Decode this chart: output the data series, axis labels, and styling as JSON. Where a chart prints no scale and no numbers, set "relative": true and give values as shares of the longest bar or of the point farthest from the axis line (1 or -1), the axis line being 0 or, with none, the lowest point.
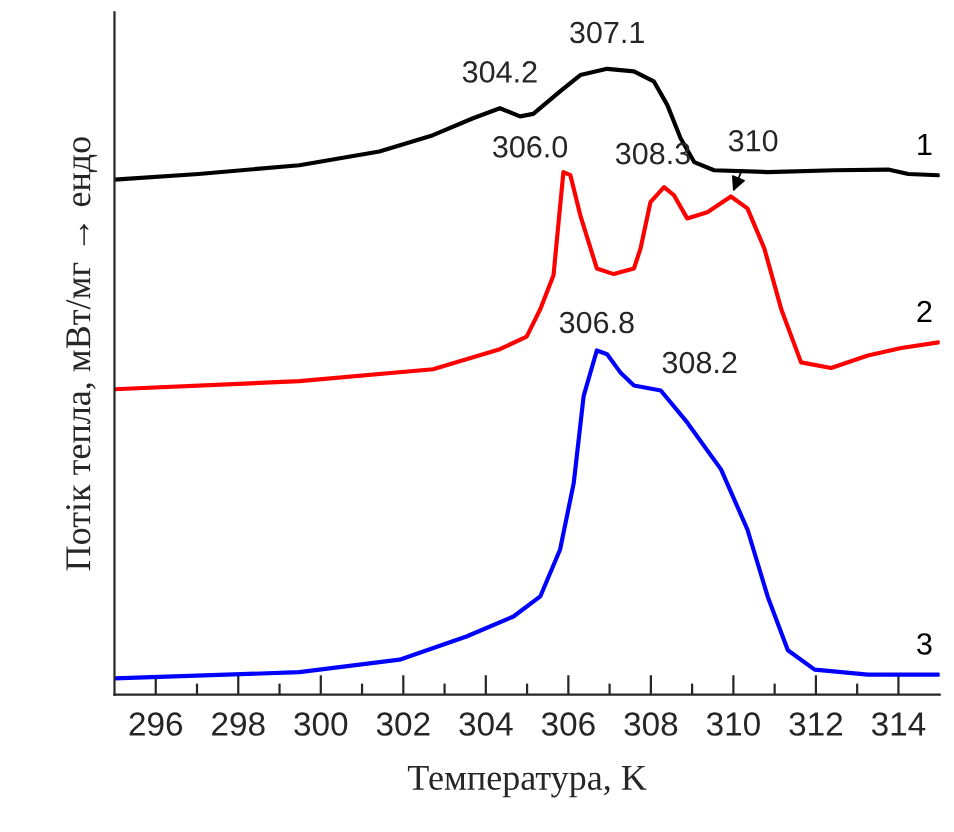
{
  "chart_data": {
    "type": "line",
    "relative": true,
    "xlabel": "Температура, K",
    "ylabel": "Потік тепла, мВт/мг → ендо",
    "xlim": [
      295,
      315
    ],
    "xticks": [
      296,
      {
        "value": 297,
        "label": null
      },
      298,
      {
        "value": 299,
        "label": null
      },
      300,
      {
        "value": 301,
        "label": null
      },
      302,
      {
        "value": 303,
        "label": null
      },
      304,
      {
        "value": 305,
        "label": null
      },
      306,
      {
        "value": 307,
        "label": null
      },
      308,
      {
        "value": 309,
        "label": null
      },
      310,
      {
        "value": 311,
        "label": null
      },
      312,
      {
        "value": 313,
        "label": null
      },
      314
    ],
    "grid": false,
    "legend": false,
    "marker": "none",
    "line_style": "solid",
    "series": [
      {
        "name": "1",
        "color": "#000000",
        "x": [
          295.0,
          297.04,
          299.48,
          301.42,
          302.72,
          303.69,
          304.34,
          304.83,
          305.15,
          305.8,
          306.29,
          306.94,
          307.59,
          308.07,
          308.4,
          308.72,
          309.05,
          309.53,
          310.83,
          312.45,
          313.75,
          314.24,
          314.97
        ],
        "values": [
          0.823,
          0.832,
          0.846,
          0.868,
          0.894,
          0.921,
          0.937,
          0.924,
          0.928,
          0.964,
          0.99,
          1.0,
          0.996,
          0.98,
          0.942,
          0.889,
          0.851,
          0.838,
          0.835,
          0.838,
          0.839,
          0.832,
          0.83
        ]
      },
      {
        "name": "2",
        "color": "#ff0000",
        "x": [
          295.0,
          299.48,
          302.72,
          304.34,
          304.99,
          305.32,
          305.64,
          305.88,
          306.05,
          306.29,
          306.69,
          307.1,
          307.59,
          307.75,
          307.99,
          308.32,
          308.56,
          308.88,
          309.37,
          309.94,
          310.34,
          310.75,
          311.16,
          311.64,
          312.37,
          313.26,
          314.07,
          314.97
        ],
        "values": [
          0.488,
          0.501,
          0.52,
          0.552,
          0.572,
          0.616,
          0.67,
          0.835,
          0.83,
          0.766,
          0.681,
          0.672,
          0.681,
          0.713,
          0.787,
          0.811,
          0.798,
          0.761,
          0.771,
          0.796,
          0.777,
          0.713,
          0.616,
          0.531,
          0.522,
          0.542,
          0.554,
          0.563
        ]
      },
      {
        "name": "3",
        "color": "#0000ff",
        "x": [
          295.0,
          299.48,
          301.91,
          303.53,
          304.67,
          305.32,
          305.8,
          306.13,
          306.37,
          306.69,
          306.94,
          307.26,
          307.59,
          308.24,
          308.88,
          309.7,
          310.34,
          310.83,
          311.32,
          311.97,
          313.26,
          314.97
        ],
        "values": [
          0.026,
          0.036,
          0.056,
          0.093,
          0.125,
          0.157,
          0.232,
          0.338,
          0.477,
          0.55,
          0.544,
          0.515,
          0.494,
          0.486,
          0.435,
          0.36,
          0.264,
          0.157,
          0.071,
          0.04,
          0.032,
          0.032
        ]
      }
    ],
    "annotations": [
      {
        "text": "304.2",
        "x": 304.34,
        "y": 0.937
      },
      {
        "text": "307.1",
        "x": 306.94,
        "y": 1.0
      },
      {
        "text": "306.0",
        "x": 305.88,
        "y": 0.835
      },
      {
        "text": "308.3",
        "x": 308.32,
        "y": 0.811
      },
      {
        "text": "310",
        "x": 309.94,
        "y": 0.796
      },
      {
        "text": "306.8",
        "x": 306.69,
        "y": 0.55
      },
      {
        "text": "308.2",
        "x": 308.24,
        "y": 0.486
      }
    ]
  }
}
